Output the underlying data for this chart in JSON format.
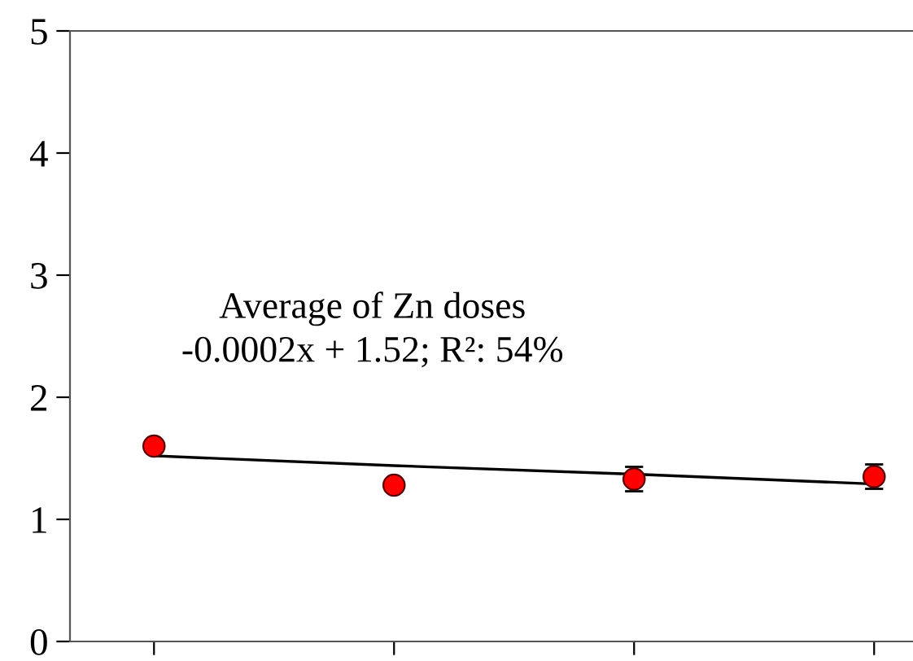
{
  "chart_data": {
    "type": "scatter",
    "categories": [
      null,
      null,
      null,
      null
    ],
    "series": [
      {
        "color": "#ff0000",
        "values": [
          1.6,
          1.28,
          1.33,
          1.35
        ],
        "errors": [
          null,
          null,
          0.1,
          0.1
        ],
        "marker": "circle"
      },
      {
        "type": "line",
        "color": "#000000",
        "values": [
          1.52,
          1.44,
          1.37,
          1.29
        ],
        "marker": "none",
        "line_style": "solid"
      }
    ],
    "annotations": [
      "Average of Zn doses",
      "-0.0002x + 1.52; R²: 54%"
    ],
    "ylim": [
      0,
      5
    ],
    "yticks": [
      0,
      1,
      2,
      3,
      4,
      5
    ],
    "tick_labels": "y",
    "grid": false,
    "legend": false
  }
}
